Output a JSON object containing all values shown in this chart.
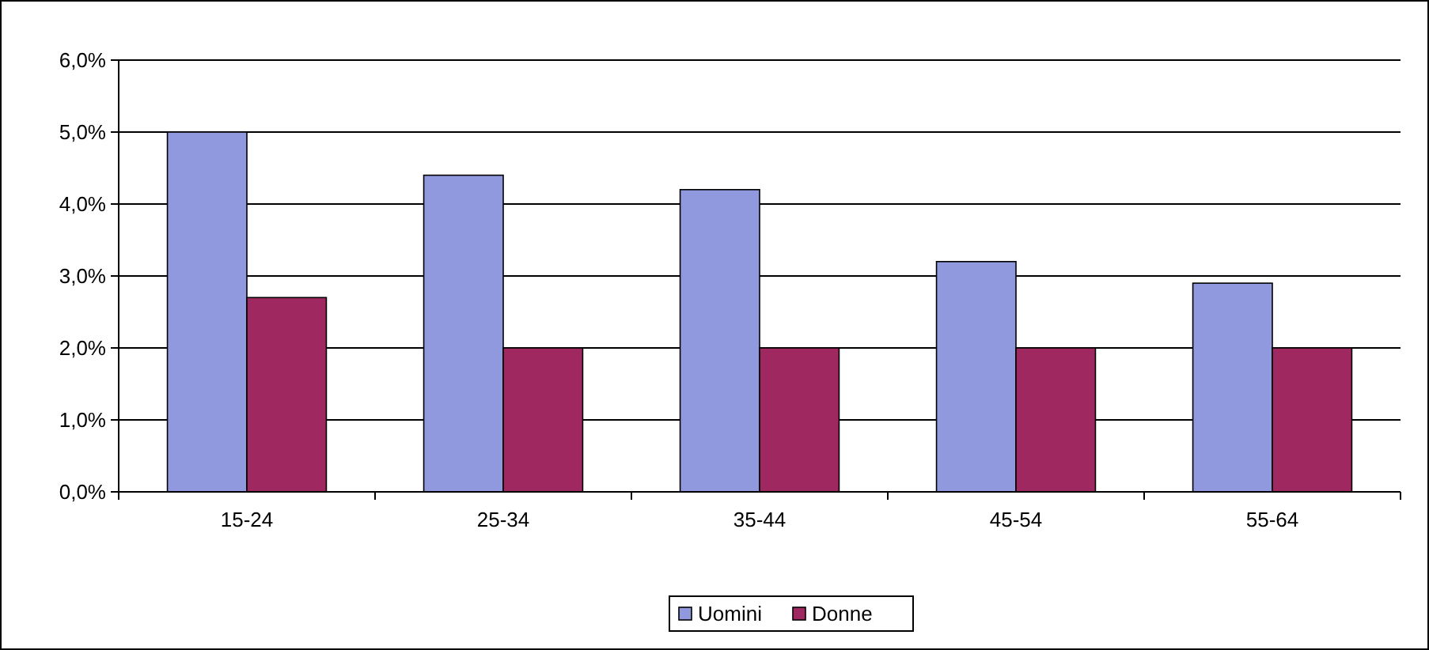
{
  "chart_data": {
    "type": "bar",
    "categories": [
      "15-24",
      "25-34",
      "35-44",
      "45-54",
      "55-64"
    ],
    "series": [
      {
        "name": "Uomini",
        "color": "#9099dd",
        "values": [
          5.0,
          4.4,
          4.2,
          3.2,
          2.9
        ]
      },
      {
        "name": "Donne",
        "color": "#a02860",
        "values": [
          2.7,
          2.0,
          2.0,
          2.0,
          2.0
        ]
      }
    ],
    "ylim": [
      0,
      6
    ],
    "yticks": [
      {
        "value": 0,
        "label": "0,0%"
      },
      {
        "value": 1,
        "label": "1,0%"
      },
      {
        "value": 2,
        "label": "2,0%"
      },
      {
        "value": 3,
        "label": "3,0%"
      },
      {
        "value": 4,
        "label": "4,0%"
      },
      {
        "value": 5,
        "label": "5,0%"
      },
      {
        "value": 6,
        "label": "6,0%"
      }
    ],
    "grid": "y",
    "legend": "bottom"
  }
}
